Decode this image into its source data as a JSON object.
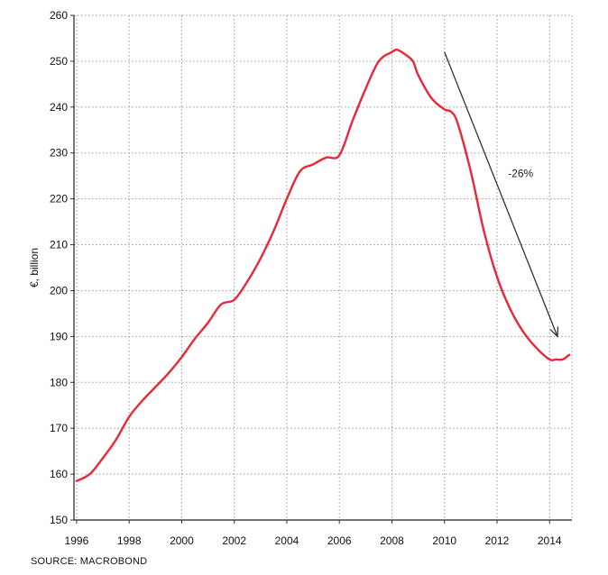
{
  "chart_data": {
    "type": "line",
    "title": "",
    "xlabel": "",
    "ylabel": "€, billion",
    "xlim": [
      1995.9,
      2014.85
    ],
    "ylim": [
      150,
      260
    ],
    "x_ticks": [
      "1996",
      "1998",
      "2000",
      "2002",
      "2004",
      "2006",
      "2008",
      "2010",
      "2012",
      "2014"
    ],
    "y_ticks": [
      "150",
      "160",
      "170",
      "180",
      "190",
      "200",
      "210",
      "220",
      "230",
      "240",
      "250",
      "260"
    ],
    "grid": true,
    "series": [
      {
        "color": "#e8283a",
        "x": [
          1996.0,
          1996.5,
          1997.0,
          1997.5,
          1998.0,
          1998.5,
          1999.0,
          1999.5,
          2000.0,
          2000.5,
          2001.0,
          2001.5,
          2002.0,
          2002.5,
          2003.0,
          2003.5,
          2004.0,
          2004.5,
          2005.0,
          2005.5,
          2006.0,
          2006.5,
          2007.0,
          2007.5,
          2008.0,
          2008.2,
          2008.5,
          2008.8,
          2009.0,
          2009.5,
          2010.0,
          2010.25,
          2010.5,
          2011.0,
          2011.5,
          2012.0,
          2012.5,
          2013.0,
          2013.5,
          2014.0,
          2014.25,
          2014.5,
          2014.75
        ],
        "values": [
          158.5,
          160,
          163.5,
          167.5,
          172.5,
          176,
          179,
          182,
          185.5,
          189.5,
          193,
          197,
          198,
          202,
          207,
          213,
          220,
          226,
          227.5,
          229,
          229.5,
          237,
          244,
          250,
          252,
          252.5,
          251.5,
          250,
          247,
          242,
          239.5,
          239,
          236.5,
          226,
          213,
          203,
          196,
          191,
          187.5,
          185,
          185,
          185,
          186
        ]
      }
    ],
    "annotations": [
      {
        "text": "-26%",
        "x": 2012.9,
        "y": 225.5
      }
    ],
    "arrow": {
      "from": [
        2010.0,
        252.0
      ],
      "to": [
        2014.3,
        190.0
      ],
      "color": "#333333"
    },
    "source": "SOURCE: MACROBOND"
  }
}
